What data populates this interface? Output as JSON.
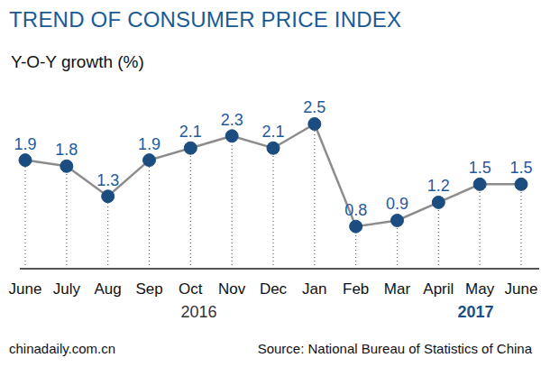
{
  "chart_data": {
    "type": "line",
    "title": "TREND OF CONSUMER PRICE INDEX",
    "subtitle": "Y-O-Y growth (%)",
    "categories": [
      "June",
      "July",
      "Aug",
      "Sep",
      "Oct",
      "Nov",
      "Dec",
      "Jan",
      "Feb",
      "Mar",
      "April",
      "May",
      "June"
    ],
    "year_labels": [
      "2016",
      "2017"
    ],
    "values": [
      1.9,
      1.8,
      1.3,
      1.9,
      2.1,
      2.3,
      2.1,
      2.5,
      0.8,
      0.9,
      1.2,
      1.5,
      1.5
    ],
    "color": "#1b4d80",
    "marker": "circle",
    "ylim": [
      0.1,
      3.0
    ],
    "data_labels": true,
    "tick_labels": "x",
    "grid": false,
    "footer": "chinadaily.com.cn",
    "source": "Source: National Bureau of Statistics of China"
  }
}
